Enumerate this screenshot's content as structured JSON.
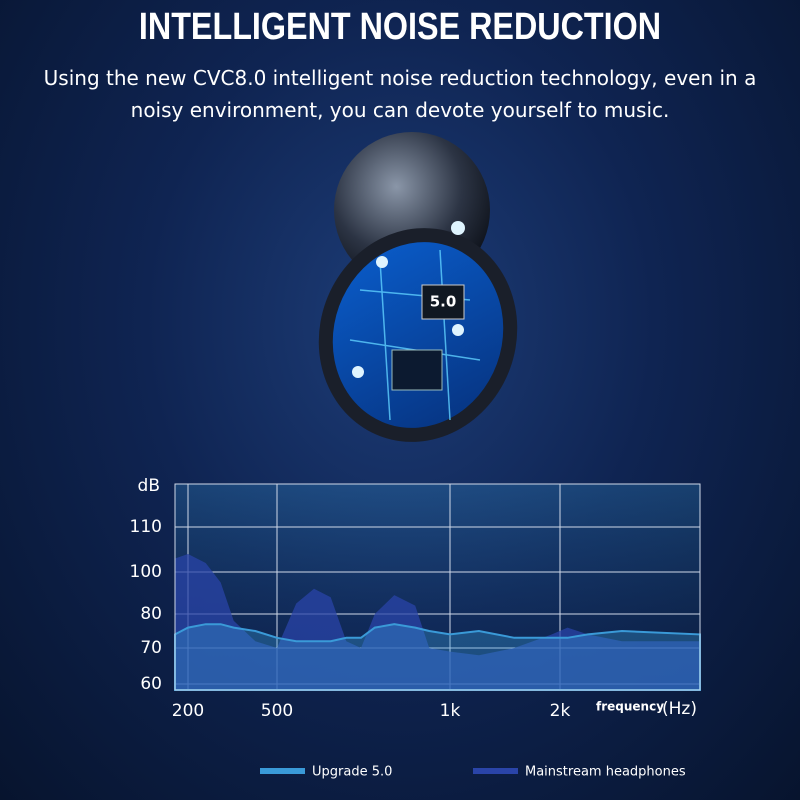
{
  "header": {
    "title": "INTELLIGENT NOISE REDUCTION",
    "subtitle": "Using the new CVC8.0 intelligent noise reduction technology, even in a noisy environment, you can devote yourself to music."
  },
  "illustration": {
    "chip_label": "5.0"
  },
  "chart_data": {
    "type": "area",
    "y_label": "dB",
    "x_label": "frequency",
    "x_unit": "(Hz)",
    "x": [
      180,
      200,
      240,
      280,
      320,
      400,
      500,
      540,
      580,
      620,
      660,
      700,
      740,
      800,
      870,
      920,
      1000,
      1200,
      1500,
      1900,
      2100,
      2400,
      3000,
      5000
    ],
    "series": [
      {
        "name": "Mainstream headphones",
        "color": "#2a44a8",
        "values": [
          103,
          104,
          102,
          95,
          78,
          72,
          70,
          85,
          92,
          88,
          72,
          70,
          80,
          89,
          84,
          70,
          69,
          68,
          70,
          74,
          76,
          74,
          72,
          72
        ]
      },
      {
        "name": "Upgrade 5.0",
        "color": "#3a9ad8",
        "values": [
          74,
          76,
          77,
          77,
          76,
          75,
          73,
          72,
          72,
          72,
          73,
          73,
          76,
          77,
          76,
          75,
          74,
          75,
          73,
          73,
          73,
          74,
          75,
          74
        ]
      }
    ],
    "xlim": [
      180,
      5000
    ],
    "xticks": [
      200,
      500,
      {
        "value": 1000,
        "label": "1k"
      },
      {
        "value": 2000,
        "label": "2k"
      }
    ],
    "ylim": [
      58,
      122
    ],
    "yticks": [
      60,
      70,
      80,
      100,
      110
    ],
    "grid": true
  }
}
